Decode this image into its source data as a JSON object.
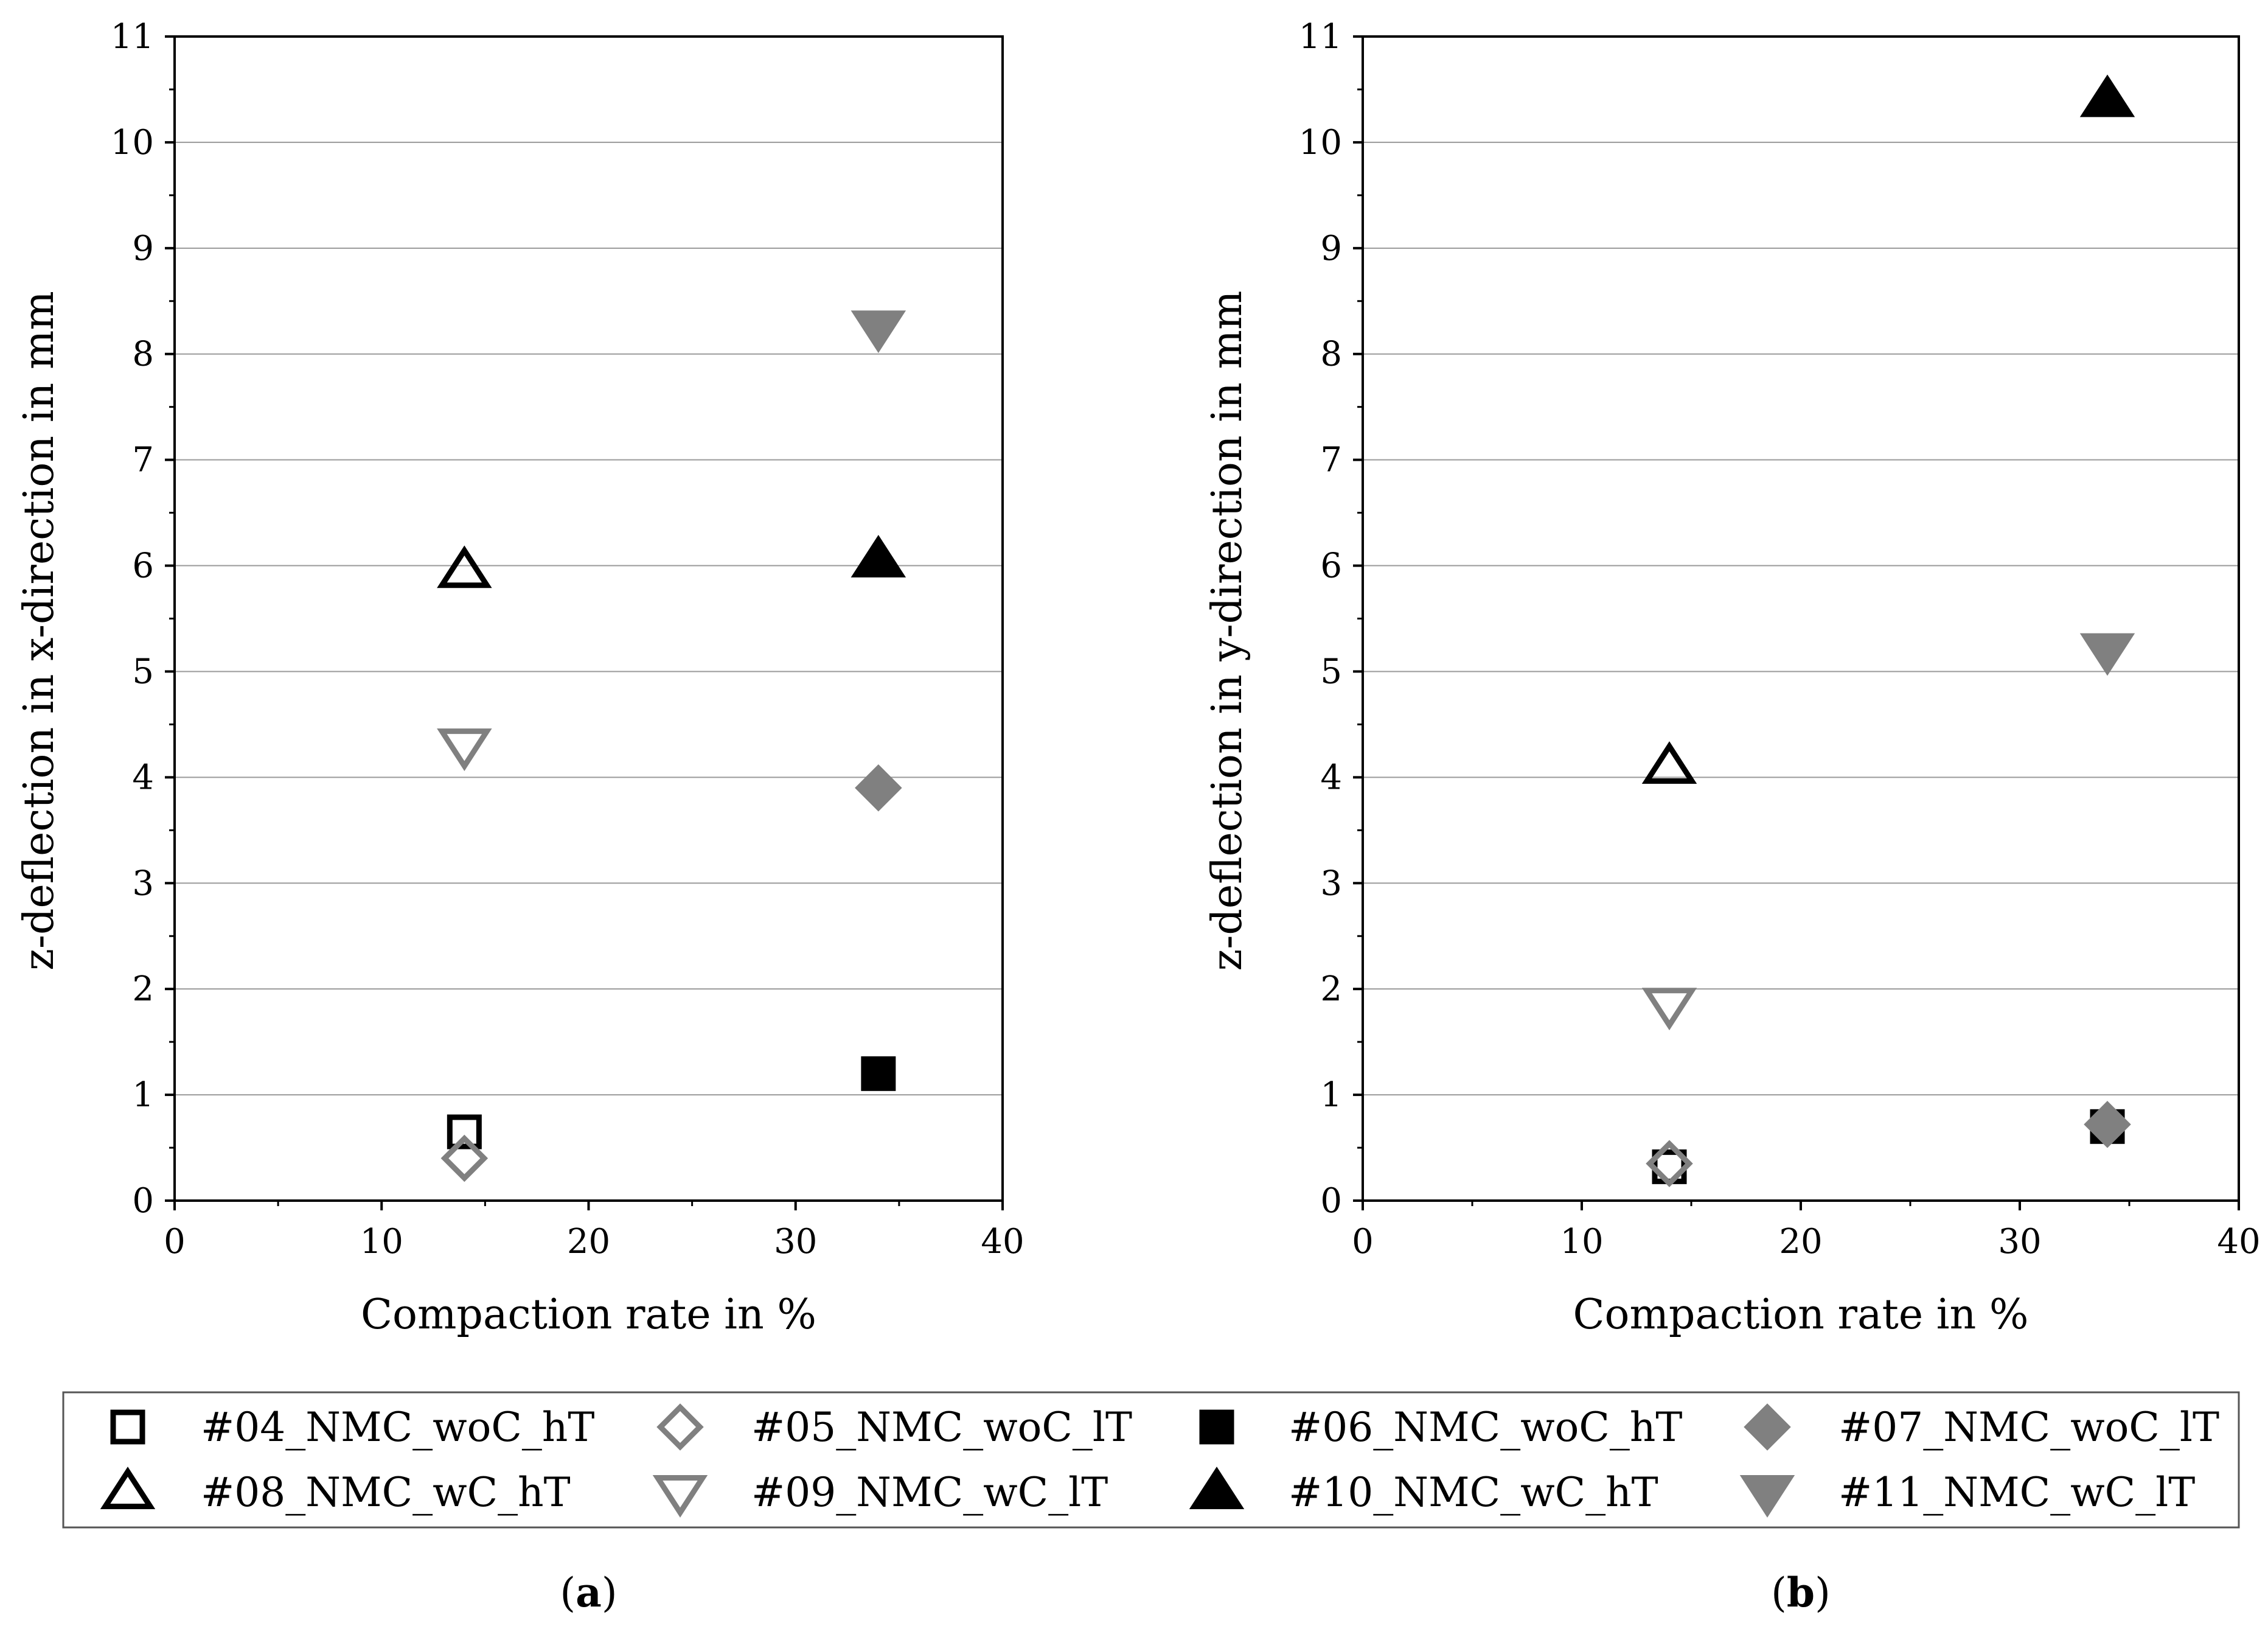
{
  "chart_data": [
    {
      "type": "scatter",
      "panel_label": "a",
      "xlabel": "Compaction rate in %",
      "ylabel": "z-deflection in x-direction in mm",
      "xlim": [
        0,
        40
      ],
      "ylim": [
        0,
        11
      ],
      "xticks": [
        0,
        10,
        20,
        30,
        40
      ],
      "yticks": [
        0,
        1,
        2,
        3,
        4,
        5,
        6,
        7,
        8,
        9,
        10,
        11
      ],
      "grid": "horizontal",
      "series": [
        {
          "name": "#04_NMC_woC_hT",
          "x": [
            14
          ],
          "y": [
            0.65
          ]
        },
        {
          "name": "#05_NMC_woC_lT",
          "x": [
            14
          ],
          "y": [
            0.4
          ]
        },
        {
          "name": "#06_NMC_woC_hT",
          "x": [
            34
          ],
          "y": [
            1.2
          ]
        },
        {
          "name": "#07_NMC_woC_lT",
          "x": [
            34
          ],
          "y": [
            3.9
          ]
        },
        {
          "name": "#08_NMC_wC_hT",
          "x": [
            14
          ],
          "y": [
            5.95
          ]
        },
        {
          "name": "#09_NMC_wC_lT",
          "x": [
            14
          ],
          "y": [
            4.3
          ]
        },
        {
          "name": "#10_NMC_wC_hT",
          "x": [
            34
          ],
          "y": [
            6.05
          ]
        },
        {
          "name": "#11_NMC_wC_lT",
          "x": [
            34
          ],
          "y": [
            8.25
          ]
        }
      ]
    },
    {
      "type": "scatter",
      "panel_label": "b",
      "xlabel": "Compaction rate in %",
      "ylabel": "z-deflection in y-direction in mm",
      "xlim": [
        0,
        40
      ],
      "ylim": [
        0,
        11
      ],
      "xticks": [
        0,
        10,
        20,
        30,
        40
      ],
      "yticks": [
        0,
        1,
        2,
        3,
        4,
        5,
        6,
        7,
        8,
        9,
        10,
        11
      ],
      "grid": "horizontal",
      "series": [
        {
          "name": "#04_NMC_woC_hT",
          "x": [
            14
          ],
          "y": [
            0.32
          ]
        },
        {
          "name": "#05_NMC_woC_lT",
          "x": [
            14
          ],
          "y": [
            0.35
          ]
        },
        {
          "name": "#06_NMC_woC_hT",
          "x": [
            34
          ],
          "y": [
            0.7
          ]
        },
        {
          "name": "#07_NMC_woC_lT",
          "x": [
            34
          ],
          "y": [
            0.72
          ]
        },
        {
          "name": "#08_NMC_wC_hT",
          "x": [
            14
          ],
          "y": [
            4.1
          ]
        },
        {
          "name": "#09_NMC_wC_lT",
          "x": [
            14
          ],
          "y": [
            1.85
          ]
        },
        {
          "name": "#10_NMC_wC_hT",
          "x": [
            34
          ],
          "y": [
            10.4
          ]
        },
        {
          "name": "#11_NMC_wC_lT",
          "x": [
            34
          ],
          "y": [
            5.2
          ]
        }
      ]
    }
  ],
  "legend": {
    "entries": [
      {
        "label": "#04_NMC_woC_hT",
        "marker": "square",
        "fill": "none",
        "stroke": "#000000"
      },
      {
        "label": "#05_NMC_woC_lT",
        "marker": "diamond",
        "fill": "none",
        "stroke": "#808080"
      },
      {
        "label": "#06_NMC_woC_hT",
        "marker": "square",
        "fill": "#000000",
        "stroke": "#000000"
      },
      {
        "label": "#07_NMC_woC_lT",
        "marker": "diamond",
        "fill": "#808080",
        "stroke": "#808080"
      },
      {
        "label": "#08_NMC_wC_hT",
        "marker": "triangle-up",
        "fill": "none",
        "stroke": "#000000"
      },
      {
        "label": "#09_NMC_wC_lT",
        "marker": "triangle-down",
        "fill": "none",
        "stroke": "#808080"
      },
      {
        "label": "#10_NMC_wC_hT",
        "marker": "triangle-up",
        "fill": "#000000",
        "stroke": "#000000"
      },
      {
        "label": "#11_NMC_wC_lT",
        "marker": "triangle-down",
        "fill": "#808080",
        "stroke": "#808080"
      }
    ]
  }
}
